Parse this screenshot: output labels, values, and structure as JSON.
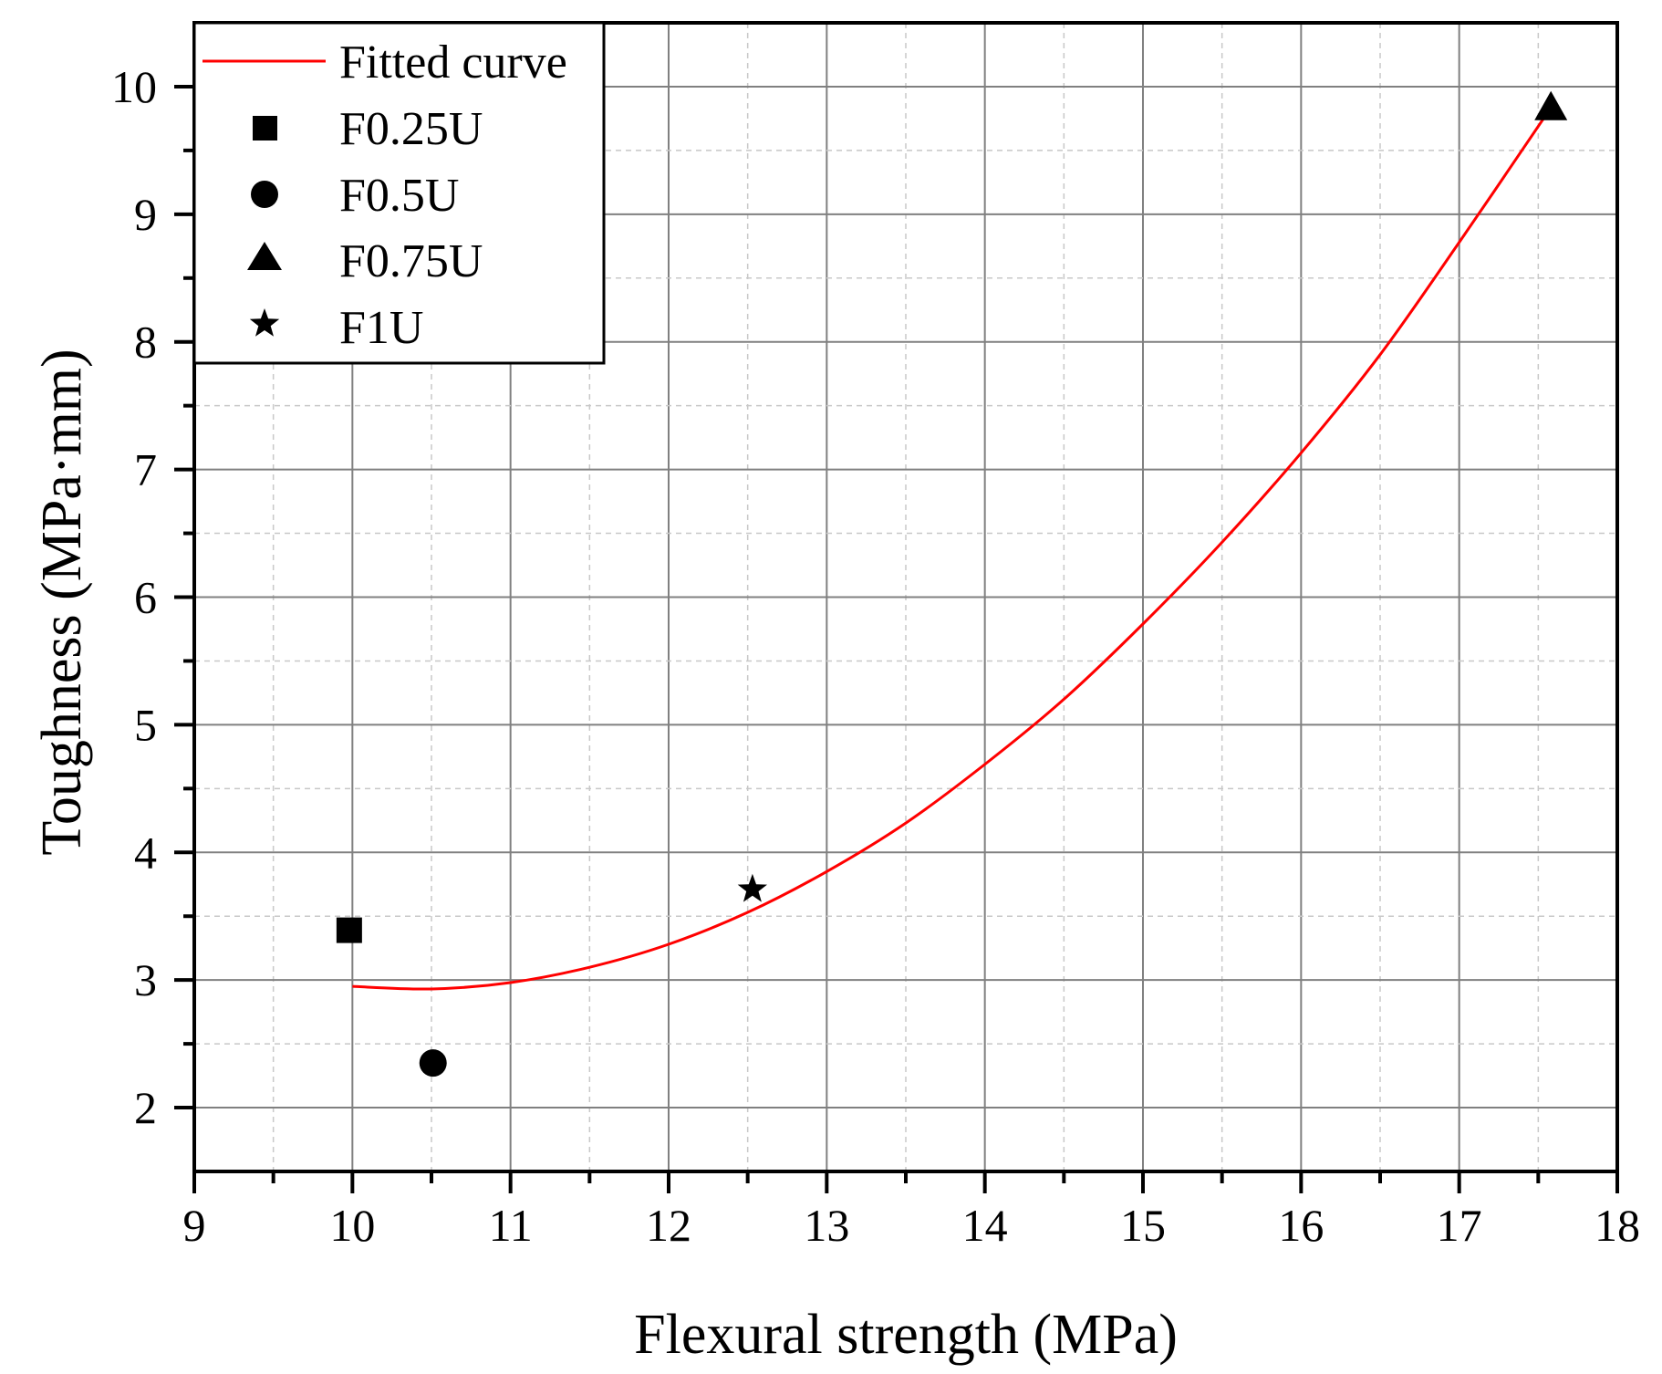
{
  "chart_data": {
    "type": "scatter",
    "title": "",
    "xlabel": "Flexural strength (MPa)",
    "ylabel": "Toughness (MPa·mm)",
    "xlim": [
      9,
      18
    ],
    "ylim": [
      1.5,
      10.5
    ],
    "x_ticks": [
      9,
      10,
      11,
      12,
      13,
      14,
      15,
      16,
      17,
      18
    ],
    "y_ticks": [
      2,
      3,
      4,
      5,
      6,
      7,
      8,
      9,
      10
    ],
    "grid": true,
    "legend_position": "upper left",
    "series": [
      {
        "name": "F0.25U",
        "marker": "square",
        "color": "#000000",
        "points": [
          {
            "x": 9.98,
            "y": 3.39
          }
        ]
      },
      {
        "name": "F0.5U",
        "marker": "circle",
        "color": "#000000",
        "points": [
          {
            "x": 10.51,
            "y": 2.35
          }
        ]
      },
      {
        "name": "F0.75U",
        "marker": "triangle",
        "color": "#000000",
        "points": [
          {
            "x": 17.58,
            "y": 9.83
          }
        ]
      },
      {
        "name": "F1U",
        "marker": "star",
        "color": "#000000",
        "points": [
          {
            "x": 12.53,
            "y": 3.71
          }
        ]
      }
    ],
    "fitted_curve": {
      "name": "Fitted curve",
      "color": "#ff0000",
      "form": "quadratic",
      "x": [
        10.0,
        10.5,
        11.0,
        11.5,
        12.0,
        12.5,
        13.0,
        13.5,
        14.0,
        14.5,
        15.0,
        15.5,
        16.0,
        16.5,
        17.0,
        17.55
      ],
      "y": [
        2.95,
        2.93,
        2.98,
        3.1,
        3.28,
        3.53,
        3.85,
        4.23,
        4.69,
        5.2,
        5.79,
        6.43,
        7.13,
        7.9,
        8.78,
        9.78
      ]
    }
  },
  "legend": {
    "items": [
      {
        "label": "Fitted curve",
        "symbol": "line"
      },
      {
        "label": "F0.25U",
        "symbol": "square"
      },
      {
        "label": "F0.5U",
        "symbol": "circle"
      },
      {
        "label": "F0.75U",
        "symbol": "triangle"
      },
      {
        "label": "F1U",
        "symbol": "star"
      }
    ]
  },
  "axes": {
    "x_title": "Flexural strength (MPa)",
    "y_title": "Toughness (MPa·mm)"
  },
  "colors": {
    "curve": "#ff0000",
    "marker": "#000000",
    "grid_major": "#808080",
    "grid_minor": "#c8c8c8",
    "axis": "#000000"
  }
}
